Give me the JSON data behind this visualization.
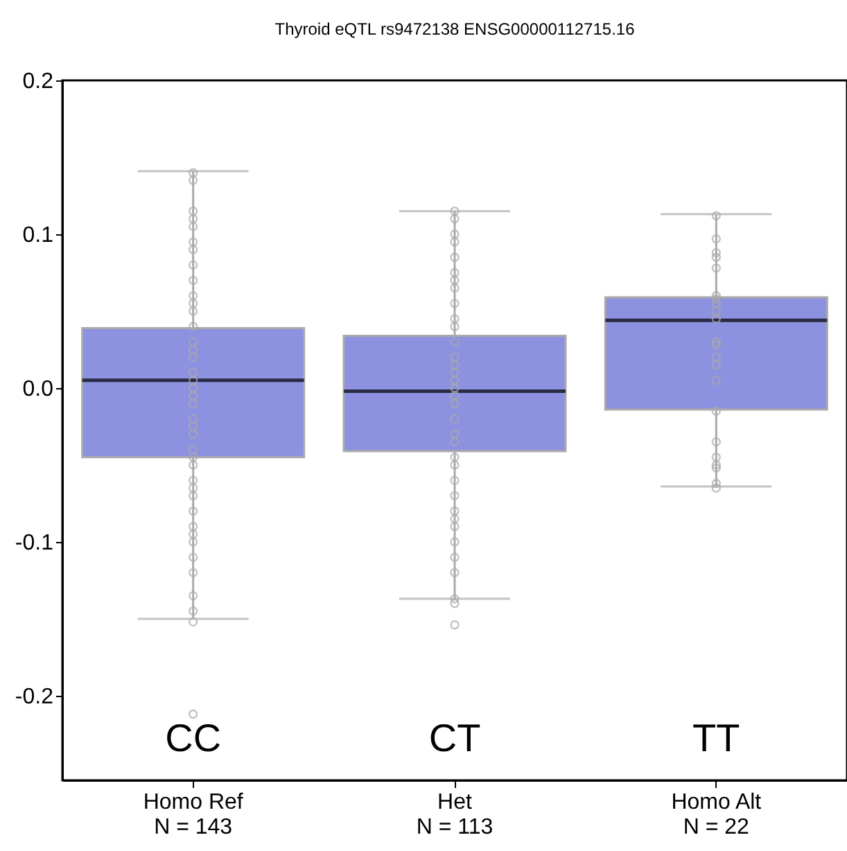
{
  "chart_data": {
    "type": "box",
    "title": "Thyroid eQTL rs9472138 ENSG00000112715.16",
    "categories": [
      "Homo Ref\nN = 143",
      "Het\nN = 113",
      "Homo Alt\nN = 22"
    ],
    "boxes": [
      {
        "low": -0.15,
        "q1": -0.045,
        "median": 0.005,
        "q3": 0.039,
        "high": 0.141
      },
      {
        "low": -0.137,
        "q1": -0.041,
        "median": -0.002,
        "q3": 0.034,
        "high": 0.115
      },
      {
        "low": -0.064,
        "q1": -0.014,
        "median": 0.044,
        "q3": 0.059,
        "high": 0.113
      }
    ],
    "color": "#8c91e0",
    "series": [
      {
        "type": "scatter",
        "color": "#aaaaaa",
        "x": [
          "Homo Ref\nN = 143",
          "Homo Ref\nN = 143",
          "Homo Ref\nN = 143",
          "Homo Ref\nN = 143",
          "Homo Ref\nN = 143",
          "Homo Ref\nN = 143",
          "Homo Ref\nN = 143",
          "Homo Ref\nN = 143",
          "Homo Ref\nN = 143",
          "Homo Ref\nN = 143",
          "Homo Ref\nN = 143",
          "Homo Ref\nN = 143",
          "Homo Ref\nN = 143",
          "Homo Ref\nN = 143",
          "Homo Ref\nN = 143",
          "Homo Ref\nN = 143",
          "Homo Ref\nN = 143",
          "Homo Ref\nN = 143",
          "Homo Ref\nN = 143",
          "Homo Ref\nN = 143",
          "Homo Ref\nN = 143",
          "Homo Ref\nN = 143",
          "Homo Ref\nN = 143",
          "Homo Ref\nN = 143",
          "Homo Ref\nN = 143",
          "Homo Ref\nN = 143",
          "Homo Ref\nN = 143",
          "Homo Ref\nN = 143",
          "Homo Ref\nN = 143",
          "Homo Ref\nN = 143",
          "Homo Ref\nN = 143",
          "Homo Ref\nN = 143",
          "Homo Ref\nN = 143",
          "Homo Ref\nN = 143",
          "Homo Ref\nN = 143",
          "Homo Ref\nN = 143",
          "Homo Ref\nN = 143",
          "Homo Ref\nN = 143",
          "Homo Ref\nN = 143",
          "Homo Ref\nN = 143"
        ],
        "values": [
          0.14,
          0.135,
          0.115,
          0.11,
          0.105,
          0.095,
          0.09,
          0.08,
          0.07,
          0.06,
          0.055,
          0.05,
          0.04,
          0.03,
          0.025,
          0.02,
          0.01,
          0.005,
          0.0,
          -0.005,
          -0.01,
          -0.02,
          -0.025,
          -0.03,
          -0.04,
          -0.045,
          -0.05,
          -0.06,
          -0.065,
          -0.07,
          -0.08,
          -0.09,
          -0.095,
          -0.1,
          -0.11,
          -0.12,
          -0.135,
          -0.145,
          -0.152,
          -0.212
        ]
      },
      {
        "type": "scatter",
        "color": "#aaaaaa",
        "x": [
          "Het\nN = 113",
          "Het\nN = 113",
          "Het\nN = 113",
          "Het\nN = 113",
          "Het\nN = 113",
          "Het\nN = 113",
          "Het\nN = 113",
          "Het\nN = 113",
          "Het\nN = 113",
          "Het\nN = 113",
          "Het\nN = 113",
          "Het\nN = 113",
          "Het\nN = 113",
          "Het\nN = 113",
          "Het\nN = 113",
          "Het\nN = 113",
          "Het\nN = 113",
          "Het\nN = 113",
          "Het\nN = 113",
          "Het\nN = 113",
          "Het\nN = 113",
          "Het\nN = 113",
          "Het\nN = 113",
          "Het\nN = 113",
          "Het\nN = 113",
          "Het\nN = 113",
          "Het\nN = 113",
          "Het\nN = 113",
          "Het\nN = 113",
          "Het\nN = 113",
          "Het\nN = 113",
          "Het\nN = 113",
          "Het\nN = 113",
          "Het\nN = 113",
          "Het\nN = 113"
        ],
        "values": [
          0.115,
          0.11,
          0.1,
          0.095,
          0.085,
          0.075,
          0.07,
          0.065,
          0.055,
          0.045,
          0.04,
          0.03,
          0.02,
          0.015,
          0.01,
          0.005,
          0.0,
          -0.005,
          -0.01,
          -0.02,
          -0.03,
          -0.035,
          -0.045,
          -0.05,
          -0.06,
          -0.07,
          -0.08,
          -0.085,
          -0.09,
          -0.1,
          -0.11,
          -0.12,
          -0.137,
          -0.14,
          -0.154
        ]
      },
      {
        "type": "scatter",
        "color": "#aaaaaa",
        "x": [
          "Homo Alt\nN = 22",
          "Homo Alt\nN = 22",
          "Homo Alt\nN = 22",
          "Homo Alt\nN = 22",
          "Homo Alt\nN = 22",
          "Homo Alt\nN = 22",
          "Homo Alt\nN = 22",
          "Homo Alt\nN = 22",
          "Homo Alt\nN = 22",
          "Homo Alt\nN = 22",
          "Homo Alt\nN = 22",
          "Homo Alt\nN = 22",
          "Homo Alt\nN = 22",
          "Homo Alt\nN = 22",
          "Homo Alt\nN = 22",
          "Homo Alt\nN = 22",
          "Homo Alt\nN = 22",
          "Homo Alt\nN = 22",
          "Homo Alt\nN = 22",
          "Homo Alt\nN = 22",
          "Homo Alt\nN = 22",
          "Homo Alt\nN = 22"
        ],
        "values": [
          0.112,
          0.097,
          0.088,
          0.085,
          0.078,
          0.06,
          0.058,
          0.055,
          0.05,
          0.045,
          0.03,
          0.028,
          0.02,
          0.015,
          0.005,
          -0.015,
          -0.035,
          -0.045,
          -0.05,
          -0.052,
          -0.062,
          -0.065
        ]
      }
    ],
    "annotations": [
      "CC",
      "CT",
      "TT"
    ],
    "ylim": [
      -0.255,
      0.2
    ],
    "yticks": [
      {
        "value": -0.2,
        "label": "-0.2"
      },
      {
        "value": -0.1,
        "label": "-0.1"
      },
      {
        "value": 0.0,
        "label": "0.0"
      },
      {
        "value": 0.1,
        "label": "0.1"
      },
      {
        "value": 0.2,
        "label": "0.2"
      }
    ],
    "grid": false,
    "marker": "circle"
  }
}
